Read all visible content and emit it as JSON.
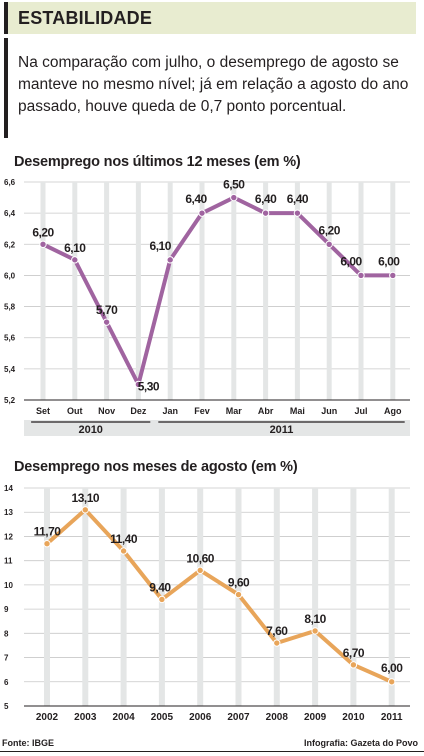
{
  "header": {
    "title": "ESTABILIDADE"
  },
  "intro": "Na comparação com julho, o desemprego de agosto se manteve no mesmo nível; já em relação a agosto do ano passado, houve queda de 0,7 ponto porcentual.",
  "colors": {
    "line1": "#a064a0",
    "line2": "#e8a55a",
    "band": "#e4e6e6",
    "header_bg": "#e8ecd0"
  },
  "chart_data": [
    {
      "type": "line",
      "title": "Desemprego nos últimos 12 meses (em %)",
      "categories": [
        "Set",
        "Out",
        "Nov",
        "Dez",
        "Jan",
        "Fev",
        "Mar",
        "Abr",
        "Mai",
        "Jun",
        "Jul",
        "Ago"
      ],
      "values": [
        6.2,
        6.1,
        5.7,
        5.3,
        6.1,
        6.4,
        6.5,
        6.4,
        6.4,
        6.2,
        6.0,
        6.0
      ],
      "value_labels": [
        "6,20",
        "6,10",
        "5,70",
        "5,30",
        "6,10",
        "6,40",
        "6,50",
        "6,40",
        "6,40",
        "6,20",
        "6,00",
        "6,00"
      ],
      "ylim": [
        5.2,
        6.6
      ],
      "yticks": [
        5.2,
        5.4,
        5.6,
        5.8,
        6.0,
        6.2,
        6.4,
        6.6
      ],
      "ytick_labels": [
        "5,2",
        "5,4",
        "5,6",
        "5,8",
        "6,0",
        "6,2",
        "6,4",
        "6,6"
      ],
      "groups": [
        {
          "label": "2010",
          "from": 0,
          "to": 3
        },
        {
          "label": "2011",
          "from": 4,
          "to": 11
        }
      ]
    },
    {
      "type": "line",
      "title": "Desemprego nos meses de agosto (em %)",
      "categories": [
        "2002",
        "2003",
        "2004",
        "2005",
        "2006",
        "2007",
        "2008",
        "2009",
        "2010",
        "2011"
      ],
      "values": [
        11.7,
        13.1,
        11.4,
        9.4,
        10.6,
        9.6,
        7.6,
        8.1,
        6.7,
        6.0
      ],
      "value_labels": [
        "11,70",
        "13,10",
        "11,40",
        "9,40",
        "10,60",
        "9,60",
        "7,60",
        "8,10",
        "6,70",
        "6,00"
      ],
      "ylim": [
        5,
        14
      ],
      "yticks": [
        5,
        6,
        7,
        8,
        9,
        10,
        11,
        12,
        13,
        14
      ],
      "ytick_labels": [
        "5",
        "6",
        "7",
        "8",
        "9",
        "10",
        "11",
        "12",
        "13",
        "14"
      ]
    }
  ],
  "footer": {
    "source": "Fonte: IBGE",
    "credit": "Infografia: Gazeta do Povo"
  }
}
